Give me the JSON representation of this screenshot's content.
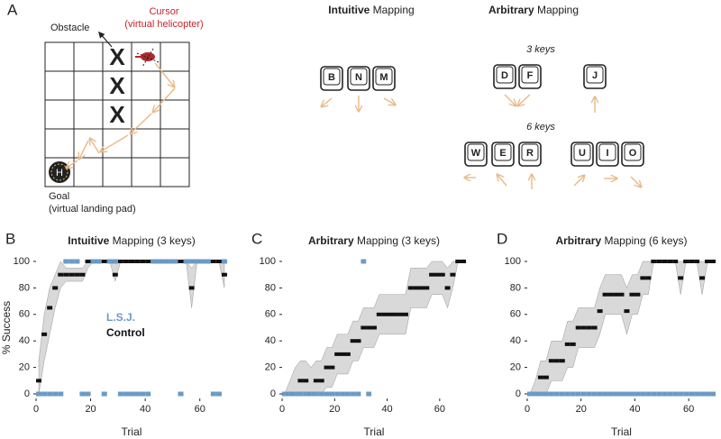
{
  "diagram": {
    "panel": "A",
    "obstacle": "Obstacle",
    "cursor": "Cursor",
    "cursor_sub": "(virtual helicopter)",
    "goal": "Goal",
    "goal_sub": "(virtual landing pad)",
    "obstacle_marks": [
      "X",
      "X",
      "X"
    ],
    "pad_label": "H",
    "intuitive": {
      "title": {
        "bold": "Intuitive",
        "rest": "Mapping"
      },
      "keys": [
        "B",
        "N",
        "M"
      ]
    },
    "arbitrary": {
      "title": {
        "bold": "Arbitrary",
        "rest": "Mapping"
      },
      "three_keys": {
        "label": "3 keys",
        "keys": [
          "D",
          "F",
          "J"
        ]
      },
      "six_keys": {
        "label": "6 keys",
        "keys": [
          "W",
          "E",
          "R",
          "U",
          "I",
          "O"
        ]
      }
    }
  },
  "chart_data": [
    {
      "type": "line",
      "panel": "B",
      "title": {
        "bold": "Intuitive",
        "rest": "Mapping (3 keys)"
      },
      "xlabel": "Trial",
      "ylabel": "% Success",
      "x": [
        1,
        3,
        5,
        7,
        9,
        11,
        13,
        15,
        17,
        19,
        21,
        23,
        25,
        27,
        29,
        31,
        33,
        35,
        37,
        39,
        41,
        43,
        45,
        47,
        49,
        51,
        53,
        55,
        57,
        59,
        61,
        63,
        65,
        67,
        69
      ],
      "series": [
        {
          "name": "Control",
          "color": "#111111",
          "values": [
            10,
            45,
            65,
            80,
            90,
            90,
            90,
            90,
            90,
            100,
            100,
            100,
            100,
            100,
            90,
            100,
            100,
            100,
            100,
            100,
            100,
            100,
            100,
            100,
            100,
            100,
            100,
            100,
            80,
            100,
            100,
            100,
            100,
            100,
            90
          ],
          "lower": [
            0,
            25,
            45,
            65,
            80,
            85,
            85,
            85,
            85,
            95,
            100,
            100,
            100,
            100,
            85,
            100,
            100,
            100,
            100,
            100,
            100,
            100,
            100,
            100,
            100,
            100,
            100,
            100,
            65,
            100,
            100,
            100,
            100,
            100,
            80
          ],
          "upper": [
            25,
            60,
            80,
            90,
            100,
            95,
            95,
            95,
            95,
            100,
            100,
            100,
            100,
            100,
            100,
            100,
            100,
            100,
            100,
            100,
            100,
            100,
            100,
            100,
            100,
            100,
            100,
            100,
            95,
            100,
            100,
            100,
            100,
            100,
            100
          ]
        },
        {
          "name": "L.S.J.",
          "color": "#6a9bc7",
          "values": [
            0,
            0,
            0,
            0,
            0,
            100,
            100,
            100,
            0,
            0,
            100,
            100,
            0,
            100,
            100,
            0,
            0,
            0,
            0,
            0,
            0,
            100,
            100,
            100,
            100,
            100,
            0,
            100,
            100,
            100,
            100,
            100,
            0,
            0,
            100
          ]
        }
      ],
      "legend": true,
      "band_color": "#d9d9d9",
      "xlim": [
        0,
        70
      ],
      "ylim": [
        0,
        100
      ],
      "xticks": [
        0,
        20,
        40,
        60
      ],
      "yticks": [
        0,
        20,
        40,
        60,
        80,
        100
      ]
    },
    {
      "type": "line",
      "panel": "C",
      "title": {
        "bold": "Arbitrary",
        "rest": "Mapping (3 keys)"
      },
      "xlabel": "Trial",
      "x": [
        1,
        3,
        5,
        7,
        9,
        11,
        13,
        15,
        17,
        19,
        21,
        23,
        25,
        27,
        29,
        31,
        33,
        35,
        37,
        39,
        41,
        43,
        45,
        47,
        49,
        51,
        53,
        55,
        57,
        59,
        61,
        63,
        65,
        67,
        69
      ],
      "series": [
        {
          "color": "#111111",
          "values": [
            0,
            0,
            0,
            10,
            10,
            0,
            10,
            10,
            20,
            20,
            30,
            30,
            30,
            40,
            40,
            50,
            50,
            50,
            60,
            60,
            60,
            60,
            60,
            60,
            80,
            80,
            80,
            80,
            90,
            90,
            90,
            80,
            90,
            100,
            100
          ],
          "lower": [
            0,
            0,
            0,
            0,
            0,
            0,
            0,
            0,
            5,
            5,
            15,
            15,
            15,
            25,
            25,
            35,
            35,
            35,
            45,
            45,
            45,
            45,
            45,
            45,
            65,
            65,
            65,
            65,
            75,
            75,
            75,
            65,
            80,
            100,
            100
          ],
          "upper": [
            0,
            10,
            20,
            25,
            25,
            20,
            25,
            25,
            35,
            35,
            45,
            45,
            45,
            55,
            55,
            65,
            65,
            65,
            75,
            75,
            75,
            75,
            75,
            75,
            95,
            95,
            95,
            95,
            100,
            100,
            100,
            95,
            100,
            100,
            100
          ]
        },
        {
          "color": "#6a9bc7",
          "values": [
            0,
            0,
            0,
            0,
            0,
            0,
            0,
            0,
            0,
            0,
            0,
            0,
            0,
            0,
            0,
            100,
            0,
            null,
            null,
            null,
            null,
            null,
            null,
            null,
            null,
            null,
            null,
            null,
            null,
            null,
            null,
            null,
            null,
            null,
            null
          ]
        }
      ],
      "legend": false,
      "band_color": "#d9d9d9",
      "xlim": [
        0,
        70
      ],
      "ylim": [
        0,
        100
      ],
      "xticks": [
        0,
        20,
        40,
        60
      ],
      "yticks": [
        0,
        20,
        40,
        60,
        80,
        100
      ]
    },
    {
      "type": "line",
      "panel": "D",
      "title": {
        "bold": "Arbitrary",
        "rest": "Mapping (6 keys)"
      },
      "xlabel": "Trial",
      "x": [
        1,
        3,
        5,
        7,
        9,
        11,
        13,
        15,
        17,
        19,
        21,
        23,
        25,
        27,
        29,
        31,
        33,
        35,
        37,
        39,
        41,
        43,
        45,
        47,
        49,
        51,
        53,
        55,
        57,
        59,
        61,
        63,
        65,
        67,
        69
      ],
      "series": [
        {
          "color": "#111111",
          "values": [
            0,
            0,
            12.5,
            12.5,
            25,
            25,
            25,
            37.5,
            37.5,
            50,
            50,
            50,
            50,
            62.5,
            75,
            75,
            75,
            75,
            62.5,
            75,
            75,
            87.5,
            87.5,
            100,
            100,
            100,
            100,
            100,
            87.5,
            100,
            100,
            100,
            87.5,
            100,
            100
          ],
          "lower": [
            0,
            0,
            0,
            0,
            10,
            10,
            10,
            20,
            20,
            35,
            35,
            35,
            35,
            45,
            60,
            60,
            60,
            60,
            45,
            60,
            60,
            75,
            75,
            100,
            100,
            100,
            100,
            100,
            75,
            100,
            100,
            100,
            75,
            100,
            100
          ],
          "upper": [
            0,
            10,
            25,
            25,
            40,
            40,
            40,
            55,
            55,
            65,
            65,
            65,
            65,
            80,
            90,
            90,
            90,
            90,
            80,
            90,
            90,
            100,
            100,
            100,
            100,
            100,
            100,
            100,
            100,
            100,
            100,
            100,
            100,
            100,
            100
          ]
        },
        {
          "color": "#6a9bc7",
          "values": [
            0,
            0,
            0,
            0,
            0,
            0,
            0,
            0,
            0,
            0,
            0,
            0,
            0,
            0,
            0,
            0,
            0,
            0,
            0,
            0,
            0,
            0,
            0,
            0,
            0,
            0,
            0,
            0,
            0,
            0,
            0,
            0,
            0,
            0,
            0
          ]
        }
      ],
      "legend": false,
      "band_color": "#d9d9d9",
      "xlim": [
        0,
        70
      ],
      "ylim": [
        0,
        100
      ],
      "xticks": [
        0,
        20,
        40,
        60
      ],
      "yticks": [
        0,
        20,
        40,
        60,
        80,
        100
      ]
    }
  ]
}
